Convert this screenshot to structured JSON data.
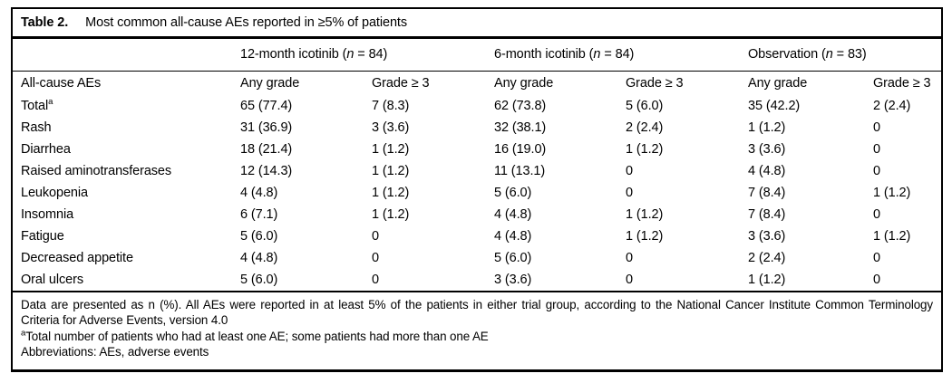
{
  "table": {
    "label": "Table 2.",
    "title": "Most common all-cause AEs reported in ≥5% of patients",
    "groups": [
      {
        "pre": "12-month icotinib (",
        "n": "n",
        "post": " = 84)"
      },
      {
        "pre": "6-month icotinib (",
        "n": "n",
        "post": " = 84)"
      },
      {
        "pre": "Observation (",
        "n": "n",
        "post": " = 83)"
      }
    ],
    "columns": [
      "All-cause AEs",
      "Any grade",
      "Grade ≥ 3",
      "Any grade",
      "Grade ≥ 3",
      "Any grade",
      "Grade ≥ 3"
    ],
    "rows": [
      {
        "label": "Total",
        "sup": "a",
        "cells": [
          "65 (77.4)",
          "7 (8.3)",
          "62 (73.8)",
          "5 (6.0)",
          "35 (42.2)",
          "2 (2.4)"
        ]
      },
      {
        "label": "Rash",
        "sup": "",
        "cells": [
          "31 (36.9)",
          "3 (3.6)",
          "32 (38.1)",
          "2 (2.4)",
          "1 (1.2)",
          "0"
        ]
      },
      {
        "label": "Diarrhea",
        "sup": "",
        "cells": [
          "18 (21.4)",
          "1 (1.2)",
          "16 (19.0)",
          "1 (1.2)",
          "3 (3.6)",
          "0"
        ]
      },
      {
        "label": "Raised aminotransferases",
        "sup": "",
        "cells": [
          "12 (14.3)",
          "1 (1.2)",
          "11 (13.1)",
          "0",
          "4 (4.8)",
          "0"
        ]
      },
      {
        "label": "Leukopenia",
        "sup": "",
        "cells": [
          "4 (4.8)",
          "1 (1.2)",
          "5 (6.0)",
          "0",
          "7 (8.4)",
          "1 (1.2)"
        ]
      },
      {
        "label": "Insomnia",
        "sup": "",
        "cells": [
          "6 (7.1)",
          "1 (1.2)",
          "4 (4.8)",
          "1 (1.2)",
          "7 (8.4)",
          "0"
        ]
      },
      {
        "label": "Fatigue",
        "sup": "",
        "cells": [
          "5 (6.0)",
          "0",
          "4 (4.8)",
          "1 (1.2)",
          "3 (3.6)",
          "1 (1.2)"
        ]
      },
      {
        "label": "Decreased appetite",
        "sup": "",
        "cells": [
          "4 (4.8)",
          "0",
          "5 (6.0)",
          "0",
          "2 (2.4)",
          "0"
        ]
      },
      {
        "label": "Oral ulcers",
        "sup": "",
        "cells": [
          "5 (6.0)",
          "0",
          "3 (3.6)",
          "0",
          "1 (1.2)",
          "0"
        ]
      }
    ],
    "footnotes": {
      "note1": "Data are presented as n (%). All AEs were reported in at least 5% of the patients in either trial group, according to the National Cancer Institute Common Terminology Criteria for Adverse Events, version 4.0",
      "note2_sup": "a",
      "note2": "Total number of patients who had at least one AE; some patients had more than one AE",
      "note3": "Abbreviations: AEs, adverse events"
    }
  },
  "colors": {
    "text": "#000000",
    "border": "#000000",
    "background": "#ffffff"
  }
}
